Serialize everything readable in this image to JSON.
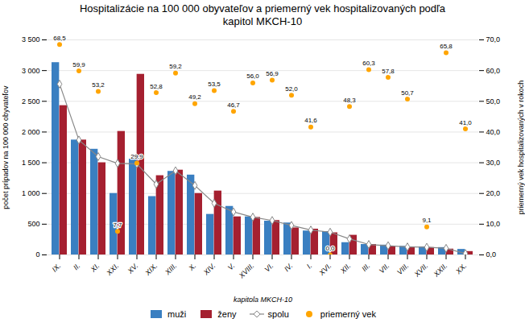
{
  "chart_data": {
    "type": "bar",
    "title": "Hospitalizácie na 100 000 obyvateľov a priemerný vek hospitalizovaných podľa\nkapitol MKCH-10",
    "xlabel": "kapitola MKCH-10",
    "ylabel": "počet prípadov na 100 000 obyvateľov",
    "y2label": "priemerný vek hospitalizovaných v rokoch",
    "categories": [
      "IX.",
      "II.",
      "XI.",
      "XXI.",
      "XV.",
      "XIX.",
      "XIII.",
      "X.",
      "XIV.",
      "V.",
      "XVIII.",
      "VI.",
      "IV.",
      "I.",
      "XVI.",
      "XII.",
      "III.",
      "VII.",
      "VIII.",
      "XVII.",
      "XXII.",
      "XX."
    ],
    "series": [
      {
        "name": "muži",
        "type": "bar",
        "color": "#3A7FC1",
        "values": [
          3130,
          1870,
          1720,
          1000,
          1560,
          950,
          1360,
          1300,
          660,
          790,
          620,
          550,
          520,
          390,
          380,
          200,
          170,
          160,
          140,
          130,
          120,
          90
        ]
      },
      {
        "name": "ženy",
        "type": "bar",
        "color": "#A52030",
        "values": [
          2430,
          1870,
          1500,
          2010,
          2940,
          1290,
          1380,
          1000,
          1040,
          620,
          610,
          560,
          440,
          420,
          360,
          320,
          170,
          140,
          120,
          120,
          95,
          55
        ]
      },
      {
        "name": "spolu",
        "type": "line",
        "color": "#888888",
        "marker": "diamond",
        "values": [
          2780,
          1870,
          1600,
          1490,
          1480,
          1150,
          1370,
          1130,
          840,
          700,
          615,
          560,
          480,
          405,
          370,
          260,
          170,
          150,
          130,
          125,
          107,
          22
        ]
      },
      {
        "name": "priemerný vek",
        "type": "scatter",
        "color": "#FFA500",
        "marker": "circle",
        "axis": "y2",
        "data_labels": true,
        "values": [
          68.5,
          59.9,
          53.2,
          7.7,
          29.9,
          52.8,
          59.2,
          49.2,
          53.5,
          46.7,
          56.0,
          56.9,
          52.0,
          41.6,
          0.0,
          48.3,
          60.3,
          57.8,
          50.7,
          9.1,
          65.8,
          41.0
        ],
        "value_labels": [
          "68,5",
          "59,9",
          "53,2",
          "7,7",
          "29,9",
          "52,8",
          "59,2",
          "49,2",
          "53,5",
          "46,7",
          "56,0",
          "56,9",
          "52,0",
          "41,6",
          "0,0",
          "48,3",
          "60,3",
          "57,8",
          "50,7",
          "9,1",
          "65,8",
          "41,0"
        ]
      }
    ],
    "ylim": [
      0,
      3500
    ],
    "yticks": [
      0,
      500,
      {
        "value": 1000,
        "label": "1 000"
      },
      {
        "value": 1500,
        "label": "1 500"
      },
      {
        "value": 2000,
        "label": "2 000"
      },
      {
        "value": 2500,
        "label": "2 500"
      },
      {
        "value": 3000,
        "label": "3 000"
      },
      {
        "value": 3500,
        "label": "3 500"
      }
    ],
    "y2lim": [
      0,
      70
    ],
    "y2ticks": [
      {
        "value": 0,
        "label": "0,0"
      },
      {
        "value": 10,
        "label": "10,0"
      },
      {
        "value": 20,
        "label": "20,0"
      },
      {
        "value": 30,
        "label": "30,0"
      },
      {
        "value": 40,
        "label": "40,0"
      },
      {
        "value": 50,
        "label": "50,0"
      },
      {
        "value": 60,
        "label": "60,0"
      },
      {
        "value": 70,
        "label": "70,0"
      }
    ],
    "grid": true,
    "legend": "bottom"
  }
}
